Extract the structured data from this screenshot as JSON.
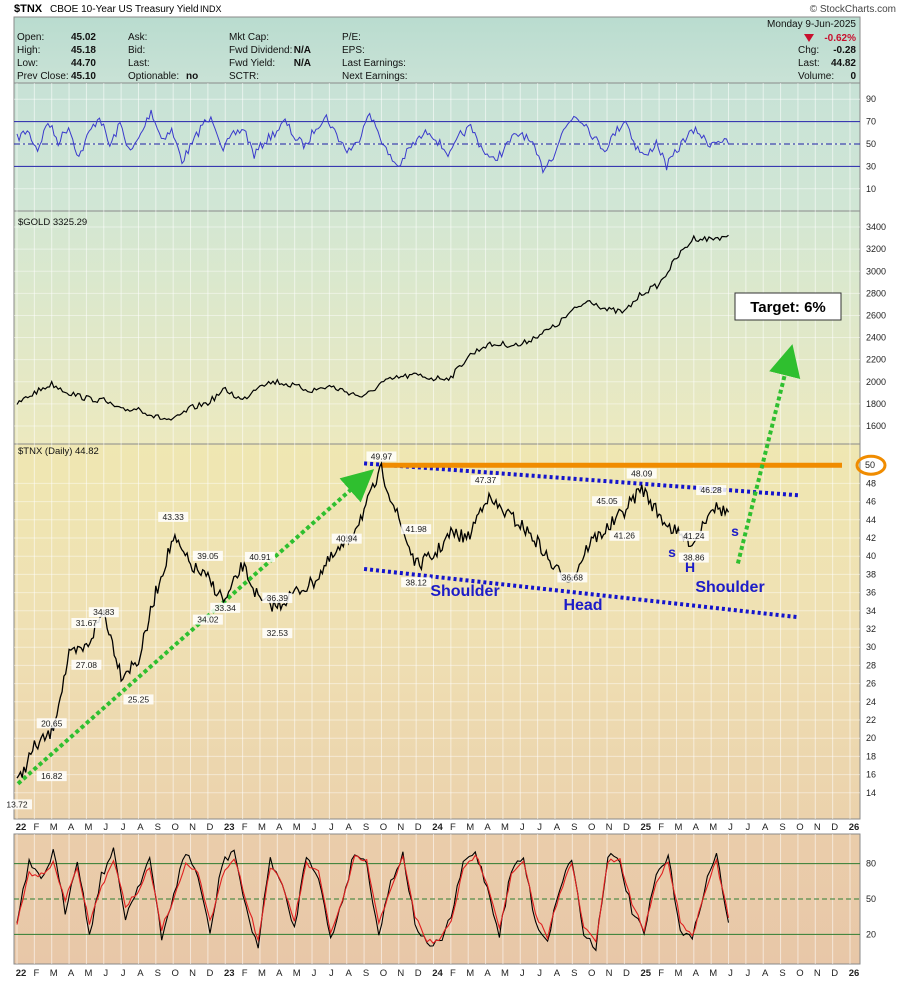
{
  "header": {
    "symbol": "$TNX",
    "name": "CBOE 10-Year US Treasury Yield",
    "exchange": "INDX",
    "source": "© StockCharts.com",
    "date": "Monday  9-Jun-2025",
    "change_pct": "-0.62%",
    "fields": {
      "open_label": "Open:",
      "open": "45.02",
      "high_label": "High:",
      "high": "45.18",
      "low_label": "Low:",
      "low": "44.70",
      "prev_label": "Prev Close:",
      "prev": "45.10",
      "ask_label": "Ask:",
      "bid_label": "Bid:",
      "last_label": "Last:",
      "optionable_label": "Optionable:",
      "optionable": "no",
      "mktcap_label": "Mkt Cap:",
      "fwddiv_label": "Fwd Dividend:",
      "fwddiv": "N/A",
      "fwdyield_label": "Fwd Yield:",
      "fwdyield": "N/A",
      "sctr_label": "SCTR:",
      "pe_label": "P/E:",
      "eps_label": "EPS:",
      "lastearn_label": "Last Earnings:",
      "nextearn_label": "Next Earnings:",
      "chg_label": "Chg:",
      "chg": "-0.28",
      "last2_label": "Last:",
      "last2": "44.82",
      "vol_label": "Volume:",
      "vol": "0"
    }
  },
  "colors": {
    "price": "#000000",
    "rsi": "#3a3acc",
    "band": "#2020a8",
    "channel": "#1414cc",
    "target_line": "#f08c00",
    "arrow": "#2fbf2f",
    "stoch_k": "#000000",
    "stoch_d": "#e02020",
    "gold_bg_top": "#b8dad0",
    "tnx_bg_bottom": "#eacfac"
  },
  "chart_data": [
    {
      "type": "line",
      "panel": "rsi",
      "ylim": [
        0,
        100
      ],
      "ticks": [
        90,
        70,
        50,
        30,
        10
      ],
      "bands": [
        70,
        50,
        30
      ],
      "x_range": [
        "2022-01",
        "2025-06"
      ],
      "series": [
        {
          "values": [
            55,
            62,
            45,
            70,
            52,
            66,
            38,
            60,
            75,
            48,
            68,
            42,
            58,
            80,
            55,
            62,
            35,
            50,
            68,
            72,
            46,
            58,
            64,
            40,
            52,
            60,
            70,
            55,
            48,
            66,
            74,
            58,
            44,
            50,
            78,
            62,
            40,
            30,
            45,
            55,
            62,
            50,
            40,
            58,
            65,
            48,
            35,
            42,
            55,
            60,
            48,
            28,
            40,
            62,
            76,
            70,
            55,
            45,
            60,
            72,
            48,
            38,
            52,
            30,
            44,
            58,
            62,
            50,
            54,
            50
          ]
        }
      ]
    },
    {
      "type": "line",
      "panel": "gold",
      "label": "$GOLD 3325.29",
      "ylim": [
        1500,
        3500
      ],
      "ticks": [
        3400,
        3200,
        3000,
        2800,
        2600,
        2400,
        2200,
        2000,
        1800,
        1600
      ],
      "x": [
        "2022-01",
        "2022-02",
        "2022-03",
        "2022-04",
        "2022-05",
        "2022-06",
        "2022-07",
        "2022-08",
        "2022-09",
        "2022-10",
        "2022-11",
        "2022-12",
        "2023-01",
        "2023-02",
        "2023-03",
        "2023-04",
        "2023-05",
        "2023-06",
        "2023-07",
        "2023-08",
        "2023-09",
        "2023-10",
        "2023-11",
        "2023-12",
        "2024-01",
        "2024-02",
        "2024-03",
        "2024-04",
        "2024-05",
        "2024-06",
        "2024-07",
        "2024-08",
        "2024-09",
        "2024-10",
        "2024-11",
        "2024-12",
        "2025-01",
        "2025-02",
        "2025-03",
        "2025-04",
        "2025-05",
        "2025-06"
      ],
      "values": [
        1800,
        1900,
        1980,
        1900,
        1850,
        1830,
        1740,
        1760,
        1680,
        1650,
        1760,
        1810,
        1930,
        1830,
        1980,
        2000,
        1960,
        1920,
        1960,
        1910,
        1860,
        1990,
        2040,
        2060,
        2030,
        2040,
        2230,
        2330,
        2340,
        2330,
        2420,
        2500,
        2640,
        2740,
        2650,
        2630,
        2800,
        2880,
        3120,
        3300,
        3290,
        3325
      ]
    },
    {
      "type": "line",
      "panel": "tnx",
      "label": "$TNX (Daily) 44.82",
      "ylim": [
        12,
        52
      ],
      "ticks": [
        48,
        46,
        44,
        42,
        40,
        38,
        36,
        34,
        32,
        30,
        28,
        26,
        24,
        22,
        20,
        18,
        16,
        14
      ],
      "x": [
        "2022-01",
        "2022-02",
        "2022-03",
        "2022-04",
        "2022-05",
        "2022-06",
        "2022-07",
        "2022-08",
        "2022-09",
        "2022-10",
        "2022-11",
        "2022-12",
        "2023-01",
        "2023-02",
        "2023-03",
        "2023-04",
        "2023-05",
        "2023-06",
        "2023-07",
        "2023-08",
        "2023-09",
        "2023-10",
        "2023-11",
        "2023-12",
        "2024-01",
        "2024-02",
        "2024-03",
        "2024-04",
        "2024-05",
        "2024-06",
        "2024-07",
        "2024-08",
        "2024-09",
        "2024-10",
        "2024-11",
        "2024-12",
        "2025-01",
        "2025-02",
        "2025-03",
        "2025-04",
        "2025-05",
        "2025-06"
      ],
      "values": [
        15.0,
        19.0,
        20.6,
        29.0,
        30.0,
        34.0,
        27.0,
        28.5,
        36.0,
        42.0,
        39.0,
        37.5,
        35.0,
        39.0,
        35.0,
        34.5,
        36.0,
        37.0,
        39.5,
        41.5,
        45.0,
        49.5,
        44.0,
        39.0,
        40.0,
        42.5,
        42.0,
        46.5,
        45.0,
        43.5,
        41.5,
        38.5,
        37.5,
        41.5,
        43.0,
        45.0,
        47.5,
        44.5,
        42.5,
        41.5,
        45.5,
        44.82
      ],
      "data_labels": [
        {
          "text": "13.72",
          "x": "2022-01",
          "y": 13.72
        },
        {
          "text": "16.82",
          "x": "2022-03",
          "y": 16.82
        },
        {
          "text": "20.65",
          "x": "2022-03",
          "y": 20.65
        },
        {
          "text": "31.67",
          "x": "2022-05",
          "y": 31.67
        },
        {
          "text": "34.83",
          "x": "2022-06",
          "y": 34.83
        },
        {
          "text": "27.08",
          "x": "2022-05",
          "y": 27.08
        },
        {
          "text": "25.25",
          "x": "2022-08",
          "y": 25.25
        },
        {
          "text": "43.33",
          "x": "2022-10",
          "y": 43.33
        },
        {
          "text": "39.05",
          "x": "2022-12",
          "y": 39.05
        },
        {
          "text": "34.02",
          "x": "2022-12",
          "y": 34.02
        },
        {
          "text": "40.91",
          "x": "2023-03",
          "y": 40.91
        },
        {
          "text": "33.34",
          "x": "2023-01",
          "y": 33.34
        },
        {
          "text": "36.39",
          "x": "2023-04",
          "y": 36.39
        },
        {
          "text": "32.53",
          "x": "2023-04",
          "y": 32.53
        },
        {
          "text": "40.94",
          "x": "2023-08",
          "y": 40.94
        },
        {
          "text": "49.97",
          "x": "2023-10",
          "y": 49.97
        },
        {
          "text": "41.98",
          "x": "2023-12",
          "y": 41.98
        },
        {
          "text": "38.12",
          "x": "2023-12",
          "y": 38.12
        },
        {
          "text": "47.37",
          "x": "2024-04",
          "y": 47.37
        },
        {
          "text": "36.68",
          "x": "2024-09",
          "y": 36.68
        },
        {
          "text": "45.05",
          "x": "2024-11",
          "y": 45.05
        },
        {
          "text": "41.26",
          "x": "2024-12",
          "y": 41.26
        },
        {
          "text": "48.09",
          "x": "2025-01",
          "y": 48.09
        },
        {
          "text": "38.86",
          "x": "2025-04",
          "y": 38.86
        },
        {
          "text": "41.24",
          "x": "2025-04",
          "y": 41.24
        },
        {
          "text": "46.28",
          "x": "2025-05",
          "y": 46.28
        }
      ],
      "annotations": [
        {
          "text": "Target: 6%"
        },
        {
          "text": "Shoulder"
        },
        {
          "text": "Head"
        },
        {
          "text": "Shoulder"
        },
        {
          "text": "s"
        },
        {
          "text": "H"
        },
        {
          "text": "s"
        },
        {
          "text": "50"
        }
      ],
      "x_tick_labels": [
        "22",
        "F",
        "M",
        "A",
        "M",
        "J",
        "J",
        "A",
        "S",
        "O",
        "N",
        "D",
        "23",
        "F",
        "M",
        "A",
        "M",
        "J",
        "J",
        "A",
        "S",
        "O",
        "N",
        "D",
        "24",
        "F",
        "M",
        "A",
        "M",
        "J",
        "J",
        "A",
        "S",
        "O",
        "N",
        "D",
        "25",
        "F",
        "M",
        "A",
        "M",
        "J",
        "J",
        "A",
        "S",
        "O",
        "N",
        "D",
        "26"
      ]
    },
    {
      "type": "line",
      "panel": "stochastic",
      "ylim": [
        0,
        100
      ],
      "ticks": [
        80,
        50,
        20
      ],
      "series": [
        {
          "values": [
            30,
            80,
            65,
            90,
            40,
            85,
            20,
            70,
            90,
            35,
            60,
            85,
            15,
            55,
            90,
            70,
            20,
            80,
            92,
            40,
            10,
            85,
            60,
            25,
            88,
            70,
            15,
            50,
            90,
            80,
            20,
            65,
            88,
            30,
            10,
            12,
            35,
            80,
            90,
            60,
            20,
            75,
            85,
            30,
            15,
            60,
            85,
            20,
            10,
            88,
            80,
            40,
            20,
            70,
            85,
            25,
            15,
            60,
            88,
            30
          ]
        },
        {
          "values": [
            28,
            72,
            70,
            80,
            50,
            75,
            30,
            60,
            82,
            45,
            55,
            78,
            25,
            50,
            82,
            72,
            30,
            70,
            85,
            50,
            15,
            78,
            62,
            32,
            80,
            72,
            22,
            48,
            85,
            82,
            28,
            60,
            85,
            36,
            14,
            14,
            32,
            74,
            88,
            64,
            26,
            70,
            82,
            36,
            18,
            56,
            80,
            26,
            14,
            82,
            82,
            46,
            24,
            64,
            82,
            32,
            18,
            56,
            82,
            34
          ]
        }
      ]
    }
  ]
}
